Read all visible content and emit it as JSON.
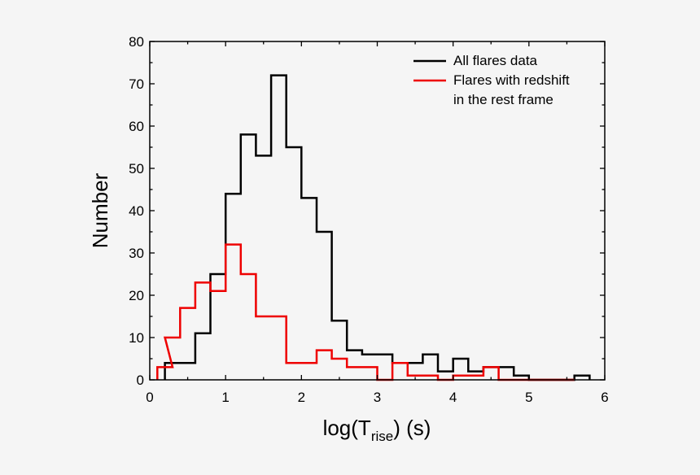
{
  "chart_data": {
    "type": "histogram",
    "xlabel": {
      "prefix": "log(T",
      "subscript": "rise",
      "suffix": ") (s)"
    },
    "ylabel": "Number",
    "xlim": [
      0,
      6
    ],
    "ylim": [
      0,
      80
    ],
    "xticks": [
      "0",
      "1",
      "2",
      "3",
      "4",
      "5",
      "6"
    ],
    "yticks": [
      "0",
      "10",
      "20",
      "30",
      "40",
      "50",
      "60",
      "70",
      "80"
    ],
    "grid": false,
    "legend_position": "top-right",
    "bin_width": 0.2,
    "series": [
      {
        "name": "All flares data",
        "color": "#000000",
        "bins": [
          {
            "x": 0.2,
            "y": 4
          },
          {
            "x": 0.4,
            "y": 4
          },
          {
            "x": 0.6,
            "y": 11
          },
          {
            "x": 0.8,
            "y": 25
          },
          {
            "x": 1.0,
            "y": 44
          },
          {
            "x": 1.2,
            "y": 58
          },
          {
            "x": 1.4,
            "y": 53
          },
          {
            "x": 1.6,
            "y": 72
          },
          {
            "x": 1.8,
            "y": 55
          },
          {
            "x": 2.0,
            "y": 43
          },
          {
            "x": 2.2,
            "y": 35
          },
          {
            "x": 2.4,
            "y": 14
          },
          {
            "x": 2.6,
            "y": 7
          },
          {
            "x": 2.8,
            "y": 6
          },
          {
            "x": 3.0,
            "y": 6
          },
          {
            "x": 3.2,
            "y": 4
          },
          {
            "x": 3.4,
            "y": 4
          },
          {
            "x": 3.6,
            "y": 6
          },
          {
            "x": 3.8,
            "y": 2
          },
          {
            "x": 4.0,
            "y": 5
          },
          {
            "x": 4.2,
            "y": 2
          },
          {
            "x": 4.4,
            "y": 3
          },
          {
            "x": 4.6,
            "y": 3
          },
          {
            "x": 4.8,
            "y": 1
          },
          {
            "x": 5.0,
            "y": 0
          },
          {
            "x": 5.2,
            "y": 0
          },
          {
            "x": 5.4,
            "y": 0
          },
          {
            "x": 5.6,
            "y": 1
          }
        ]
      },
      {
        "name": "Flares with redshift\nin the rest frame",
        "color": "#ee0000",
        "bins": [
          {
            "x": 0.1,
            "y": 3
          },
          {
            "x": 0.2,
            "y": 10
          },
          {
            "x": 0.4,
            "y": 17
          },
          {
            "x": 0.6,
            "y": 23
          },
          {
            "x": 0.8,
            "y": 21
          },
          {
            "x": 1.0,
            "y": 32
          },
          {
            "x": 1.2,
            "y": 25
          },
          {
            "x": 1.4,
            "y": 15
          },
          {
            "x": 1.6,
            "y": 15
          },
          {
            "x": 1.8,
            "y": 4
          },
          {
            "x": 2.0,
            "y": 4
          },
          {
            "x": 2.2,
            "y": 7
          },
          {
            "x": 2.4,
            "y": 5
          },
          {
            "x": 2.6,
            "y": 3
          },
          {
            "x": 2.8,
            "y": 3
          },
          {
            "x": 3.0,
            "y": 0
          },
          {
            "x": 3.2,
            "y": 4
          },
          {
            "x": 3.4,
            "y": 1
          },
          {
            "x": 3.6,
            "y": 1
          },
          {
            "x": 3.8,
            "y": 0
          },
          {
            "x": 4.0,
            "y": 1
          },
          {
            "x": 4.2,
            "y": 1
          },
          {
            "x": 4.4,
            "y": 3
          },
          {
            "x": 4.6,
            "y": 0
          },
          {
            "x": 4.8,
            "y": 0
          },
          {
            "x": 5.0,
            "y": 0
          },
          {
            "x": 5.2,
            "y": 0
          },
          {
            "x": 5.4,
            "y": 0
          }
        ]
      }
    ]
  }
}
